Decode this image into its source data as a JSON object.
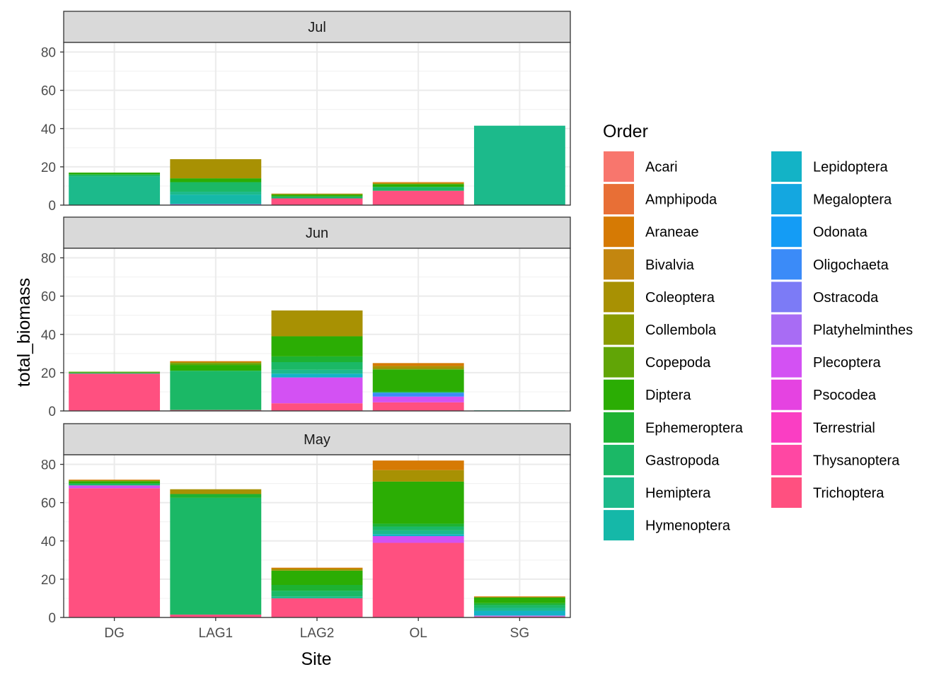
{
  "chart_data": {
    "type": "bar",
    "stacked": true,
    "facet_by": "month",
    "xlabel": "Site",
    "ylabel": "total_biomass",
    "ylim": [
      0,
      85
    ],
    "yticks": [
      0,
      20,
      40,
      60,
      80
    ],
    "grid": true,
    "legend": {
      "title": "Order",
      "placement": "right",
      "columns": 2
    },
    "categories": [
      "DG",
      "LAG1",
      "LAG2",
      "OL",
      "SG"
    ],
    "orders": [
      {
        "name": "Acari",
        "color": "#F8766D"
      },
      {
        "name": "Amphipoda",
        "color": "#E86F36"
      },
      {
        "name": "Araneae",
        "color": "#D67A04"
      },
      {
        "name": "Bivalvia",
        "color": "#C3860F"
      },
      {
        "name": "Coleoptera",
        "color": "#A89103"
      },
      {
        "name": "Collembola",
        "color": "#8A9B00"
      },
      {
        "name": "Copepoda",
        "color": "#61A506"
      },
      {
        "name": "Diptera",
        "color": "#2BAD04"
      },
      {
        "name": "Ephemeroptera",
        "color": "#1DB232"
      },
      {
        "name": "Gastropoda",
        "color": "#1BB866"
      },
      {
        "name": "Hemiptera",
        "color": "#1CBA8B"
      },
      {
        "name": "Hymenoptera",
        "color": "#15B8A8"
      },
      {
        "name": "Lepidoptera",
        "color": "#13B3C6"
      },
      {
        "name": "Megaloptera",
        "color": "#14A7E0"
      },
      {
        "name": "Odonata",
        "color": "#149CF5"
      },
      {
        "name": "Oligochaeta",
        "color": "#3B8BF8"
      },
      {
        "name": "Ostracoda",
        "color": "#7C7BF6"
      },
      {
        "name": "Platyhelminthes",
        "color": "#A86CF4"
      },
      {
        "name": "Plecoptera",
        "color": "#D351F3"
      },
      {
        "name": "Psocodea",
        "color": "#E543E1"
      },
      {
        "name": "Terrestrial",
        "color": "#FA3EC3"
      },
      {
        "name": "Thysanoptera",
        "color": "#FF47A3"
      },
      {
        "name": "Trichoptera",
        "color": "#FF5080"
      }
    ],
    "panels": [
      {
        "label": "Jul",
        "bars": [
          {
            "site": "DG",
            "segments": [
              {
                "order": "Hemiptera",
                "value": 15
              },
              {
                "order": "Gastropoda",
                "value": 1
              },
              {
                "order": "Diptera",
                "value": 1
              }
            ]
          },
          {
            "site": "LAG1",
            "segments": [
              {
                "order": "Plecoptera",
                "value": 0.5
              },
              {
                "order": "Hymenoptera",
                "value": 5
              },
              {
                "order": "Hemiptera",
                "value": 1.5
              },
              {
                "order": "Gastropoda",
                "value": 5
              },
              {
                "order": "Diptera",
                "value": 2
              },
              {
                "order": "Coleoptera",
                "value": 10
              }
            ]
          },
          {
            "site": "LAG2",
            "segments": [
              {
                "order": "Trichoptera",
                "value": 3.5
              },
              {
                "order": "Gastropoda",
                "value": 1
              },
              {
                "order": "Diptera",
                "value": 1
              },
              {
                "order": "Coleoptera",
                "value": 0.5
              }
            ]
          },
          {
            "site": "OL",
            "segments": [
              {
                "order": "Trichoptera",
                "value": 7.5
              },
              {
                "order": "Gastropoda",
                "value": 2
              },
              {
                "order": "Diptera",
                "value": 1.5
              },
              {
                "order": "Coleoptera",
                "value": 0.5
              },
              {
                "order": "Araneae",
                "value": 0.5
              }
            ]
          },
          {
            "site": "SG",
            "segments": [
              {
                "order": "Hemiptera",
                "value": 41.5
              }
            ]
          }
        ]
      },
      {
        "label": "Jun",
        "bars": [
          {
            "site": "DG",
            "segments": [
              {
                "order": "Trichoptera",
                "value": 19.5
              },
              {
                "order": "Gastropoda",
                "value": 0.5
              },
              {
                "order": "Copepoda",
                "value": 0.5
              }
            ]
          },
          {
            "site": "LAG1",
            "segments": [
              {
                "order": "Trichoptera",
                "value": 0.5
              },
              {
                "order": "Gastropoda",
                "value": 20.5
              },
              {
                "order": "Diptera",
                "value": 3
              },
              {
                "order": "Copepoda",
                "value": 1
              },
              {
                "order": "Coleoptera",
                "value": 0.5
              },
              {
                "order": "Araneae",
                "value": 0.5
              }
            ]
          },
          {
            "site": "LAG2",
            "segments": [
              {
                "order": "Trichoptera",
                "value": 4
              },
              {
                "order": "Plecoptera",
                "value": 13.5
              },
              {
                "order": "Lepidoptera",
                "value": 2
              },
              {
                "order": "Hemiptera",
                "value": 2
              },
              {
                "order": "Gastropoda",
                "value": 4
              },
              {
                "order": "Ephemeroptera",
                "value": 3
              },
              {
                "order": "Diptera",
                "value": 10.5
              },
              {
                "order": "Coleoptera",
                "value": 13.5
              }
            ]
          },
          {
            "site": "OL",
            "segments": [
              {
                "order": "Trichoptera",
                "value": 4.5
              },
              {
                "order": "Plecoptera",
                "value": 3
              },
              {
                "order": "Oligochaeta",
                "value": 2
              },
              {
                "order": "Gastropoda",
                "value": 0.5
              },
              {
                "order": "Diptera",
                "value": 11.5
              },
              {
                "order": "Copepoda",
                "value": 0.5
              },
              {
                "order": "Coleoptera",
                "value": 1.5
              },
              {
                "order": "Araneae",
                "value": 1.5
              }
            ]
          },
          {
            "site": "SG",
            "segments": [
              {
                "order": "Hemiptera",
                "value": 0.3
              }
            ]
          }
        ]
      },
      {
        "label": "May",
        "bars": [
          {
            "site": "DG",
            "segments": [
              {
                "order": "Trichoptera",
                "value": 67.5
              },
              {
                "order": "Plecoptera",
                "value": 1.5
              },
              {
                "order": "Gastropoda",
                "value": 1
              },
              {
                "order": "Diptera",
                "value": 1
              },
              {
                "order": "Copepoda",
                "value": 0.5
              },
              {
                "order": "Araneae",
                "value": 0.5
              }
            ]
          },
          {
            "site": "LAG1",
            "segments": [
              {
                "order": "Trichoptera",
                "value": 1.5
              },
              {
                "order": "Gastropoda",
                "value": 61
              },
              {
                "order": "Ephemeroptera",
                "value": 2
              },
              {
                "order": "Coleoptera",
                "value": 2.5
              }
            ]
          },
          {
            "site": "LAG2",
            "segments": [
              {
                "order": "Trichoptera",
                "value": 10
              },
              {
                "order": "Hemiptera",
                "value": 1
              },
              {
                "order": "Gastropoda",
                "value": 3
              },
              {
                "order": "Ephemeroptera",
                "value": 3
              },
              {
                "order": "Diptera",
                "value": 7.5
              },
              {
                "order": "Coleoptera",
                "value": 1
              },
              {
                "order": "Araneae",
                "value": 0.5
              }
            ]
          },
          {
            "site": "OL",
            "segments": [
              {
                "order": "Trichoptera",
                "value": 39
              },
              {
                "order": "Plecoptera",
                "value": 3.5
              },
              {
                "order": "Lepidoptera",
                "value": 1
              },
              {
                "order": "Hemiptera",
                "value": 2
              },
              {
                "order": "Gastropoda",
                "value": 2
              },
              {
                "order": "Ephemeroptera",
                "value": 1.5
              },
              {
                "order": "Diptera",
                "value": 22
              },
              {
                "order": "Coleoptera",
                "value": 6
              },
              {
                "order": "Araneae",
                "value": 5
              }
            ]
          },
          {
            "site": "SG",
            "segments": [
              {
                "order": "Trichoptera",
                "value": 0.5
              },
              {
                "order": "Platyhelminthes",
                "value": 0.5
              },
              {
                "order": "Lepidoptera",
                "value": 2.5
              },
              {
                "order": "Hemiptera",
                "value": 1.5
              },
              {
                "order": "Gastropoda",
                "value": 1.5
              },
              {
                "order": "Ephemeroptera",
                "value": 1
              },
              {
                "order": "Diptera",
                "value": 3
              },
              {
                "order": "Araneae",
                "value": 0.5
              }
            ]
          }
        ]
      }
    ]
  }
}
